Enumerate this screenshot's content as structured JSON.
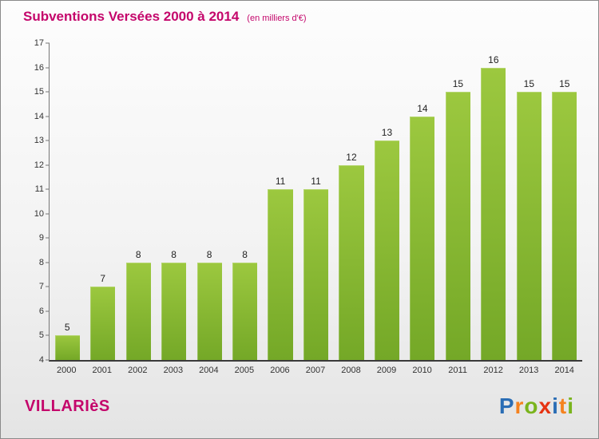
{
  "title": "Subventions Versées 2000 à 2014",
  "subtitle": "(en milliers d'€)",
  "footer": {
    "name": "VILLARIèS"
  },
  "colors": {
    "accent": "#c4066b",
    "bar_top": "#9cc83f",
    "bar_bottom": "#74a827",
    "axis": "#3a3a3a",
    "tick_text": "#333333"
  },
  "logo": {
    "name": "Proxiti",
    "letters": [
      {
        "ch": "P",
        "color": "#2a6db5"
      },
      {
        "ch": "r",
        "color": "#f5821f"
      },
      {
        "ch": "o",
        "color": "#7ab41d"
      },
      {
        "ch": "x",
        "color": "#e63312"
      },
      {
        "ch": "i",
        "color": "#2a6db5"
      },
      {
        "ch": "t",
        "color": "#f5821f"
      },
      {
        "ch": "i",
        "color": "#7ab41d"
      }
    ]
  },
  "chart_data": {
    "type": "bar",
    "title": "Subventions Versées 2000 à 2014",
    "subtitle": "(en milliers d'€)",
    "categories": [
      "2000",
      "2001",
      "2002",
      "2003",
      "2004",
      "2005",
      "2006",
      "2007",
      "2008",
      "2009",
      "2010",
      "2011",
      "2012",
      "2013",
      "2014"
    ],
    "values": [
      5,
      7,
      8,
      8,
      8,
      8,
      11,
      11,
      12,
      13,
      14,
      15,
      16,
      15,
      15
    ],
    "xlabel": "",
    "ylabel": "",
    "ylim": [
      4,
      17
    ],
    "ytick_step": 1,
    "grid": false,
    "legend": false,
    "bar_color_top": "#9cc83f",
    "bar_color_bottom": "#74a827"
  }
}
